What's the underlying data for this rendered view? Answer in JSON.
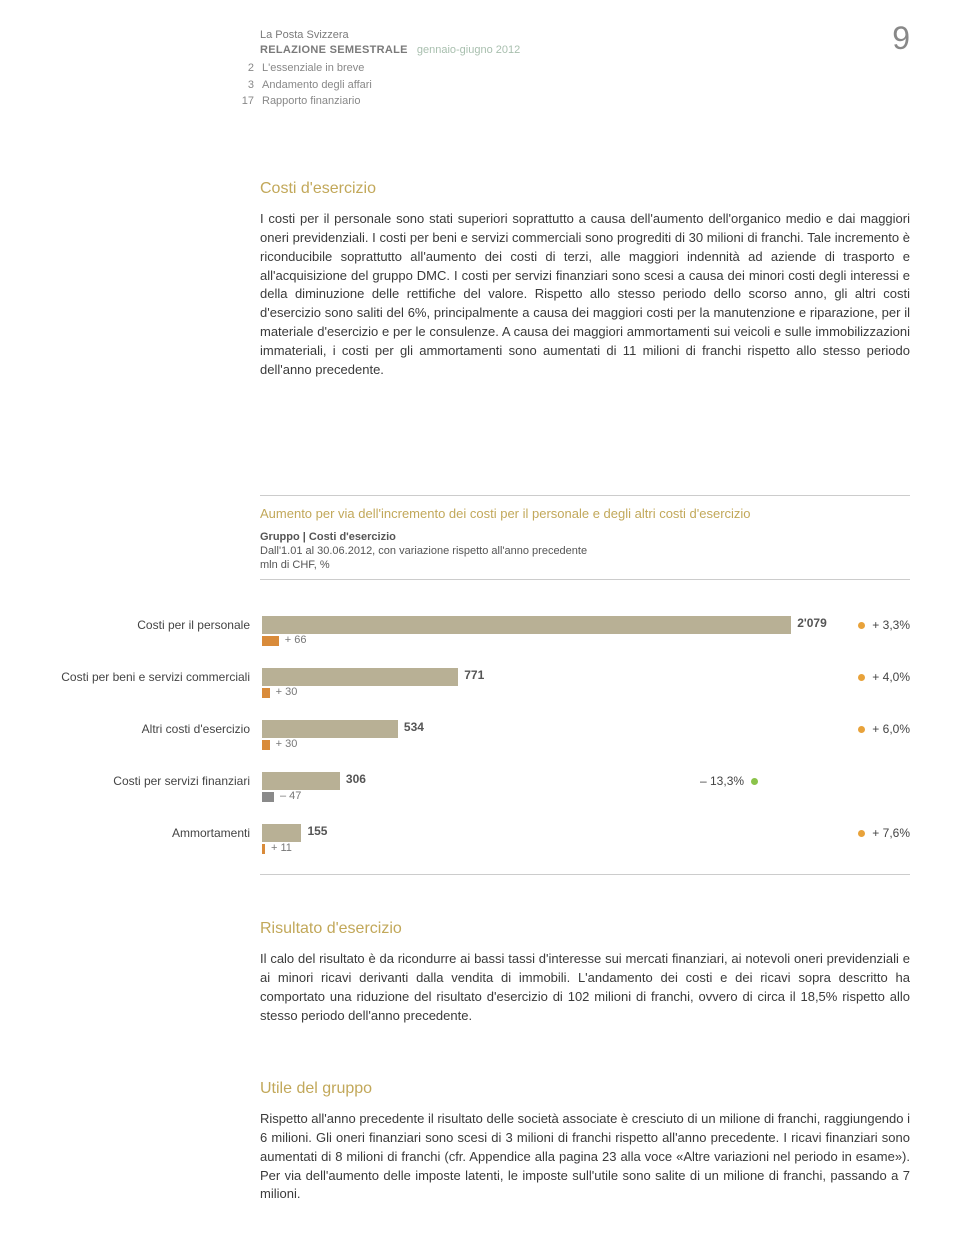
{
  "page_number": "9",
  "header": {
    "company": "La Posta Svizzera",
    "report_label": "RELAZIONE SEMESTRALE",
    "period": "gennaio-giugno 2012"
  },
  "toc": [
    {
      "num": "2",
      "label": "L'essenziale in breve"
    },
    {
      "num": "3",
      "label": "Andamento degli affari"
    },
    {
      "num": "17",
      "label": "Rapporto finanziario"
    }
  ],
  "section1": {
    "title": "Costi d'esercizio",
    "body": "I costi per il personale sono stati superiori soprattutto a causa dell'aumento dell'organico medio e dai maggiori oneri previdenziali. I costi per beni e servizi commerciali sono progrediti di 30 milioni di franchi. Tale incremento è riconducibile soprattutto all'aumento dei costi di terzi, alle maggiori indennità ad aziende di trasporto e all'acquisizione del gruppo DMC. I costi per servizi finanziari sono scesi a causa dei minori costi degli interessi e della diminuzione delle rettifiche del valore. Rispetto allo stesso periodo dello scorso anno, gli altri costi d'esercizio sono saliti del 6%, principalmente a causa dei maggiori costi per la manutenzione e riparazione, per il materiale d'esercizio e per le consulenze. A causa dei maggiori ammortamenti sui veicoli e sulle immobilizzazioni immateriali, i costi per gli ammortamenti sono aumentati di 11 milioni di franchi rispetto allo stesso periodo dell'anno precedente."
  },
  "chart": {
    "type": "bar",
    "caption": "Aumento per via dell'incremento dei costi per il personale e degli altri costi d'esercizio",
    "subtitle_bold": "Gruppo | Costi d'esercizio",
    "subtitle_line": "Dall'1.01 al 30.06.2012, con variazione rispetto all'anno precedente",
    "unit": "mln di CHF, %",
    "colors": {
      "bar_main": "#b8b095",
      "bar_delta_pos": "#d98b3a",
      "bar_delta_neg": "#8a8a8a",
      "dot_green": "#8bc34a",
      "dot_orange": "#e8a23a",
      "text": "#555555"
    },
    "scale_max": 2200,
    "rows": [
      {
        "label": "Costi per il personale",
        "value": 2079,
        "value_fmt": "2'079",
        "delta": 66,
        "delta_fmt": "+ 66",
        "pct": "+ 3,3%",
        "pct_positive": true,
        "pct_far_right": true
      },
      {
        "label": "Costi per beni e servizi commerciali",
        "value": 771,
        "value_fmt": "771",
        "delta": 30,
        "delta_fmt": "+ 30",
        "pct": "+ 4,0%",
        "pct_positive": true,
        "pct_far_right": true
      },
      {
        "label": "Altri costi d'esercizio",
        "value": 534,
        "value_fmt": "534",
        "delta": 30,
        "delta_fmt": "+ 30",
        "pct": "+ 6,0%",
        "pct_positive": true,
        "pct_far_right": true
      },
      {
        "label": "Costi per servizi finanziari",
        "value": 306,
        "value_fmt": "306",
        "delta": -47,
        "delta_fmt": "– 47",
        "pct": "– 13,3%",
        "pct_positive": false,
        "pct_far_right": false
      },
      {
        "label": "Ammortamenti",
        "value": 155,
        "value_fmt": "155",
        "delta": 11,
        "delta_fmt": "+ 11",
        "pct": "+ 7,6%",
        "pct_positive": true,
        "pct_far_right": true
      }
    ]
  },
  "section2": {
    "title": "Risultato d'esercizio",
    "body": "Il calo del risultato è da ricondurre ai bassi tassi d'interesse sui mercati finanziari, ai notevoli oneri previdenziali e ai minori ricavi derivanti dalla vendita di immobili. L'andamento dei costi e dei ricavi sopra descritto ha comportato una riduzione del risultato d'esercizio di 102 milioni di franchi, ovvero di circa il 18,5% rispetto allo stesso periodo dell'anno precedente."
  },
  "section3": {
    "title": "Utile del gruppo",
    "body": "Rispetto all'anno precedente il risultato delle società associate è cresciuto di un milione di franchi, raggiungendo i 6 milioni. Gli oneri finanziari sono scesi di 3 milioni di franchi rispetto all'anno precedente. I ricavi finanziari sono aumentati di 8 milioni di franchi (cfr. Appendice alla pagina 23 alla voce «Altre variazioni nel periodo in esame»). Per via dell'aumento delle imposte latenti, le imposte sull'utile sono salite di un milione di franchi, passando a 7 milioni."
  }
}
